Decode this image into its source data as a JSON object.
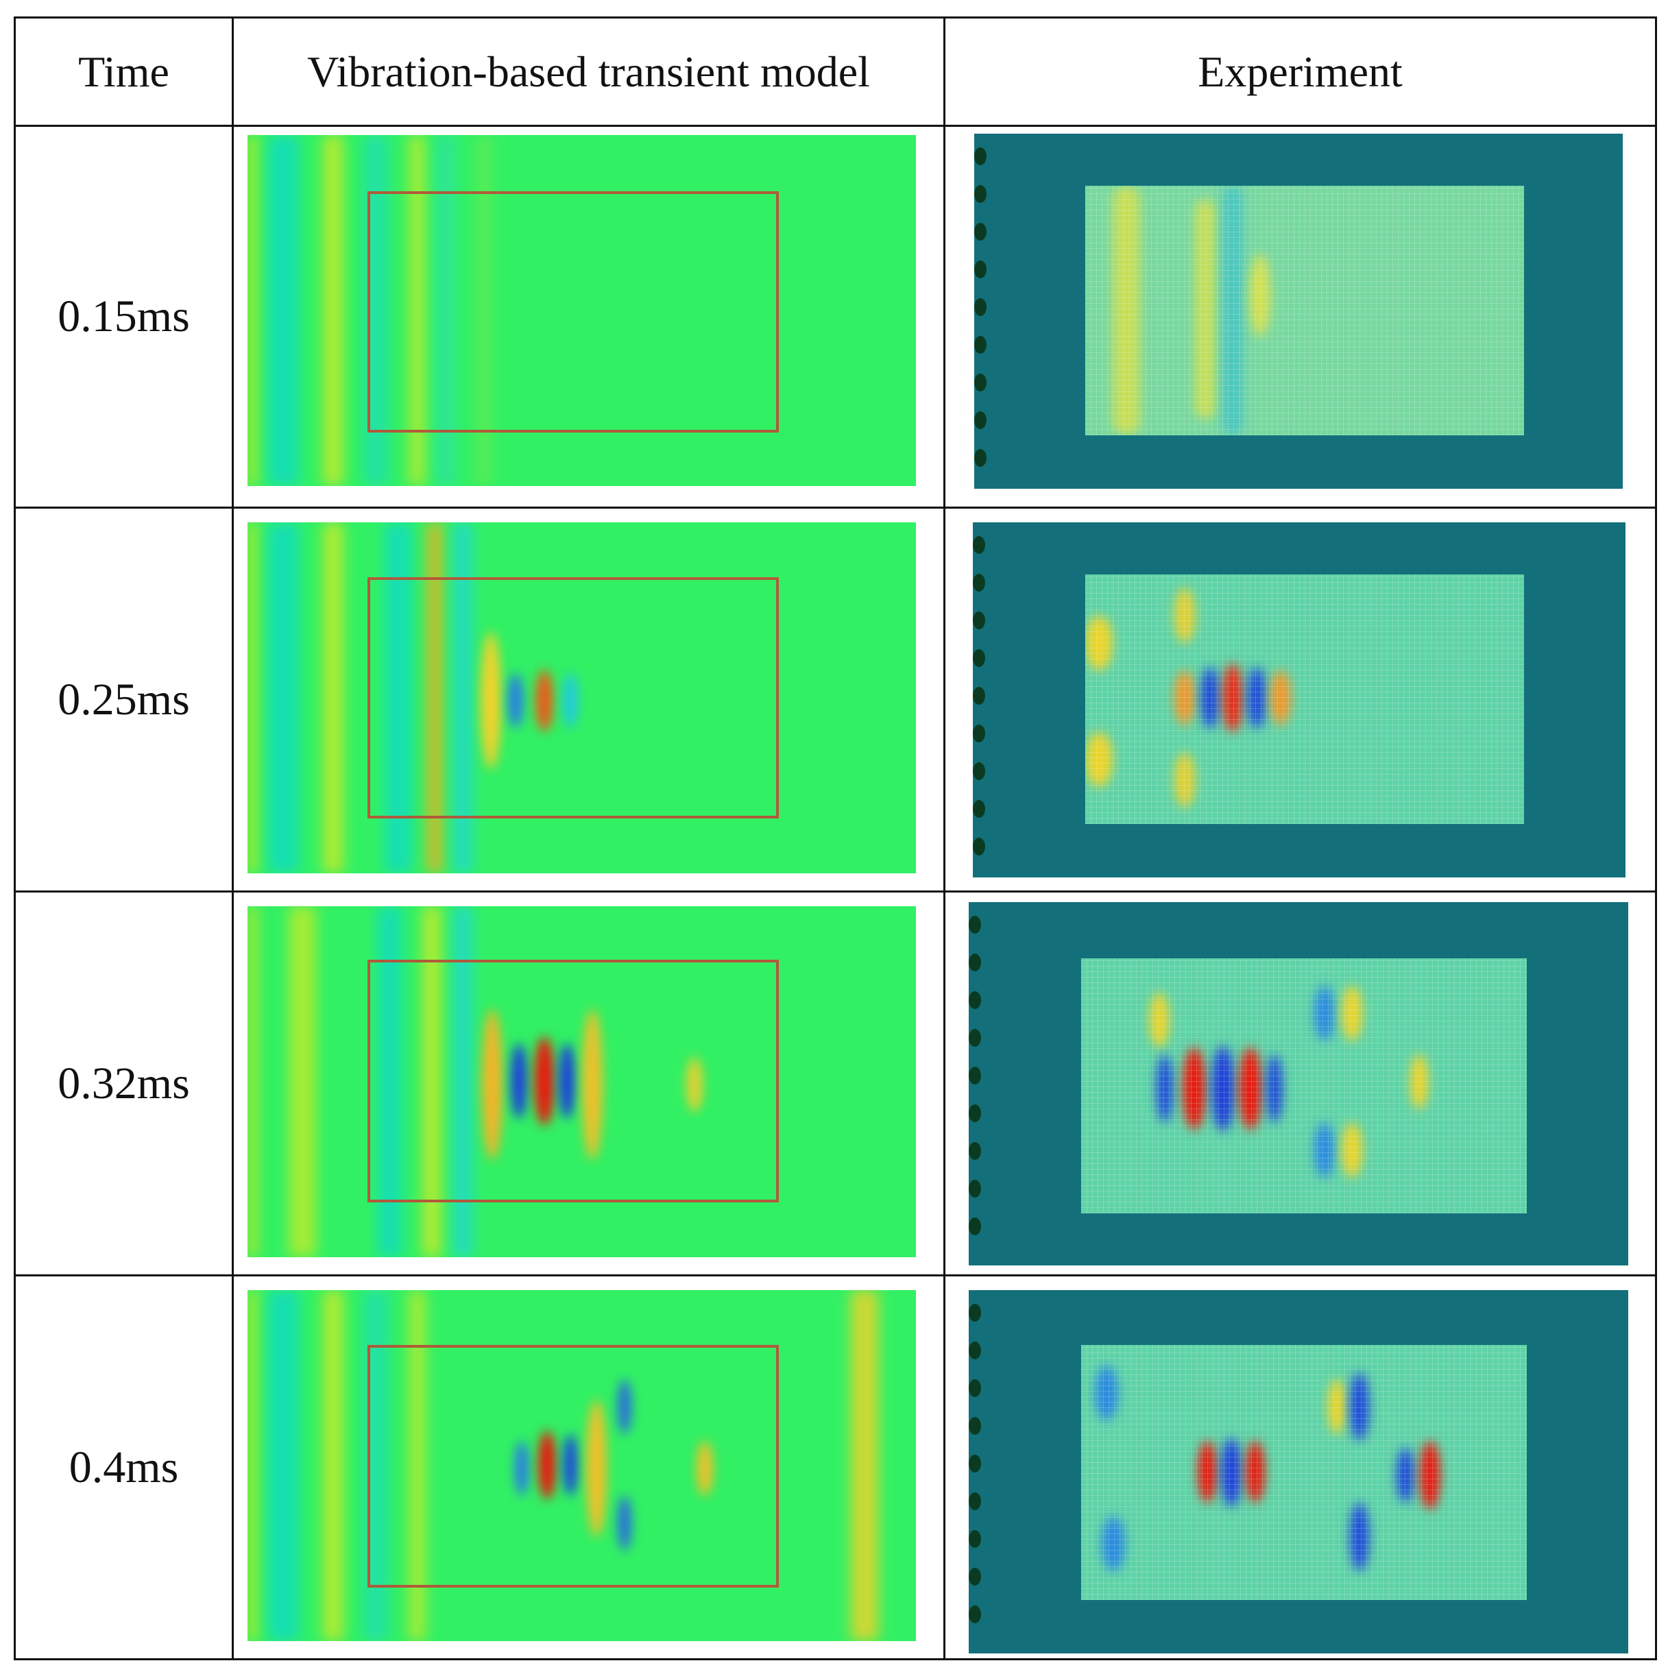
{
  "table": {
    "headers": {
      "time": "Time",
      "model": "Vibration-based transient model",
      "experiment": "Experiment"
    },
    "rows": [
      {
        "time": "0.15ms"
      },
      {
        "time": "0.25ms"
      },
      {
        "time": "0.32ms"
      },
      {
        "time": "0.4ms"
      }
    ]
  },
  "colors": {
    "background_green": "#31f064",
    "plate_teal": "#13707a",
    "scan_field": "#5fd3a7",
    "max_red": "#e8190f",
    "min_blue": "#1e3fd8",
    "yellow": "#e6e626",
    "cyan": "#10e0c8",
    "frame": "#b05a3a"
  }
}
